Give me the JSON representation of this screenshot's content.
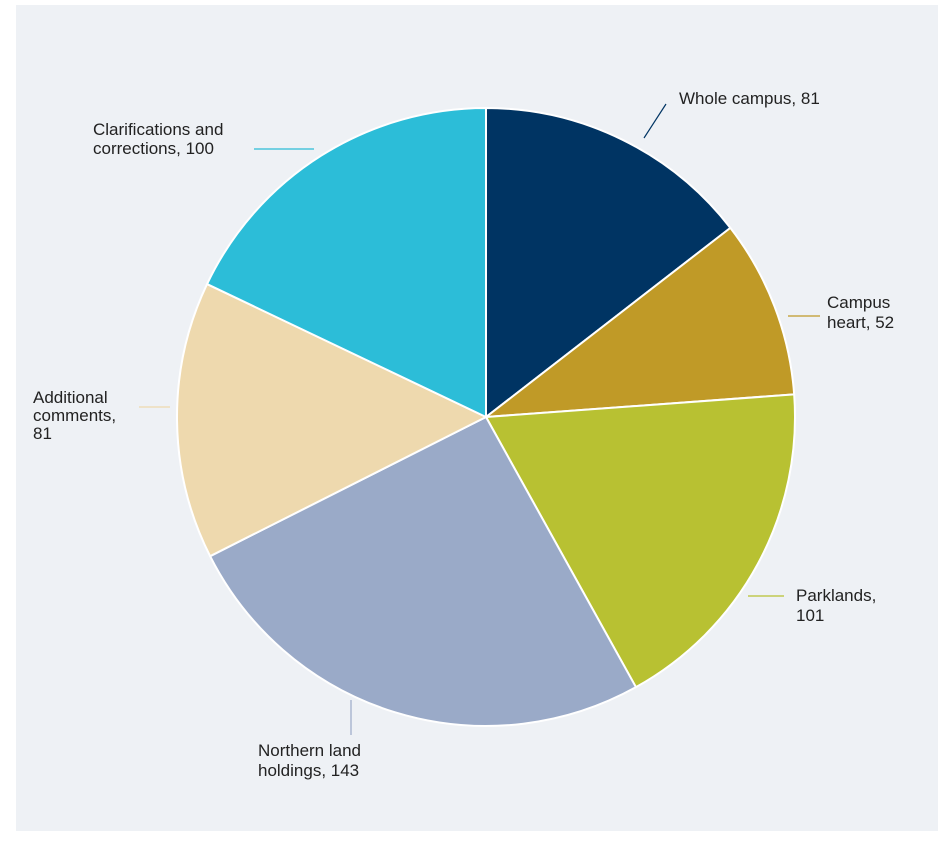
{
  "chart_data": {
    "type": "pie",
    "title": "",
    "slices": [
      {
        "name": "Whole campus",
        "value": 81,
        "color": "#003463",
        "label_lines": [
          "Whole campus, 81"
        ]
      },
      {
        "name": "Campus heart",
        "value": 52,
        "color": "#c09a27",
        "label_lines": [
          "Campus",
          "heart, 52"
        ]
      },
      {
        "name": "Parklands",
        "value": 101,
        "color": "#b8c132",
        "label_lines": [
          "Parklands,",
          "101"
        ]
      },
      {
        "name": "Northern land holdings",
        "value": 143,
        "color": "#9aaac8",
        "label_lines": [
          "Northern land",
          "holdings, 143"
        ]
      },
      {
        "name": "Additional comments",
        "value": 81,
        "color": "#eed9ae",
        "label_lines": [
          "Additional",
          "comments,",
          "81"
        ]
      },
      {
        "name": "Clarifications and corrections",
        "value": 100,
        "color": "#2cbdd8",
        "label_lines": [
          "Clarifications and",
          "corrections, 100"
        ]
      }
    ],
    "start_angle_deg": 0,
    "direction": "clockwise",
    "legend": "none",
    "labels": "outside-with-leader-lines"
  }
}
